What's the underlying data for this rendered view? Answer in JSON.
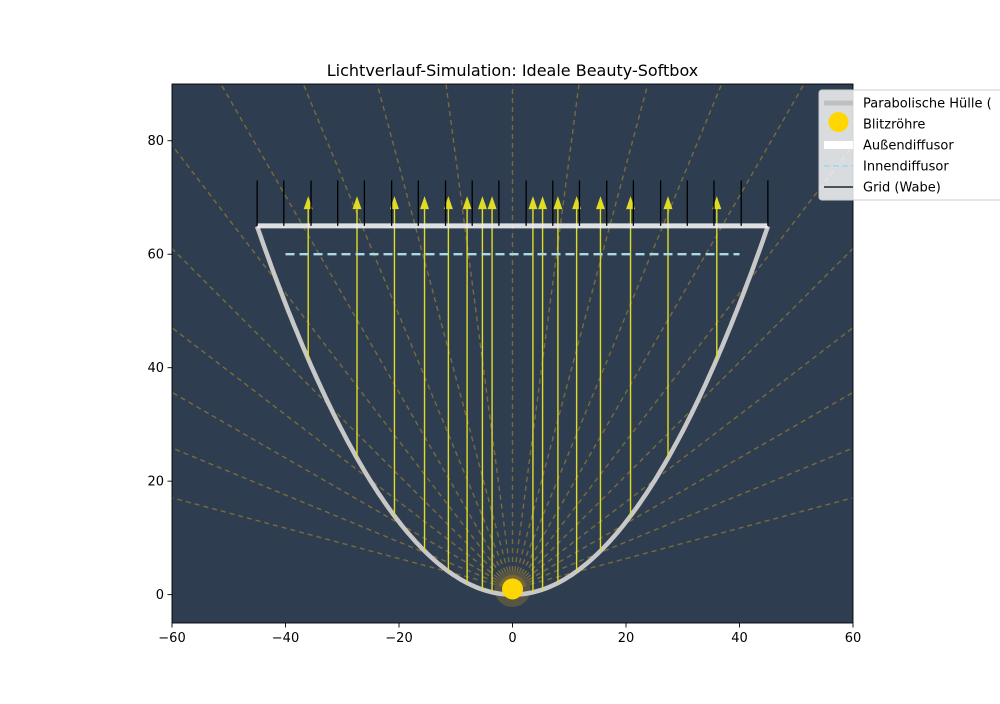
{
  "chart_data": {
    "type": "line",
    "title": "Lichtverlauf-Simulation: Ideale Beauty-Softbox",
    "xlabel": "",
    "ylabel": "",
    "xlim": [
      -60,
      60
    ],
    "ylim": [
      -5,
      90
    ],
    "x_ticks": [
      -60,
      -40,
      -20,
      0,
      20,
      40,
      60
    ],
    "x_tick_labels": [
      "−60",
      "−40",
      "−20",
      "0",
      "20",
      "40",
      "60"
    ],
    "y_ticks": [
      0,
      20,
      40,
      60,
      80
    ],
    "y_tick_labels": [
      "0",
      "20",
      "40",
      "60",
      "80"
    ],
    "grid": false,
    "legend_position": "upper-right",
    "colors": {
      "background": "#2e3e50",
      "reflector": "#c8c8c8",
      "flash": "#ffd700",
      "outer_diffuser": "#f2f2f2",
      "inner_diffuser": "#add8e6",
      "grid_cells": "#000000",
      "reflected_ray": "#e0dc23",
      "direct_ray": "#7a6a3a"
    },
    "legend": [
      {
        "label": "Parabolische Hülle (",
        "key": "reflector",
        "style": "thick-line",
        "color": "#c0c0c0"
      },
      {
        "label": "Blitzröhre",
        "key": "flash",
        "style": "dot",
        "color": "#ffd700"
      },
      {
        "label": "Außendiffusor",
        "key": "outer_diffuser",
        "style": "thick-line",
        "color": "#ffffff"
      },
      {
        "label": "Innendiffusor",
        "key": "inner_diffuser",
        "style": "dashed-line",
        "color": "#add8e6"
      },
      {
        "label": "Grid (Wabe)",
        "key": "grid_cells",
        "style": "line",
        "color": "#000000"
      }
    ],
    "series": [
      {
        "name": "Parabolische Hülle (",
        "equation": "y = x^2 / 31.2",
        "x_range": [
          -45,
          45
        ]
      },
      {
        "name": "Blitzröhre",
        "points": [
          [
            0,
            1
          ]
        ]
      },
      {
        "name": "Außendiffusor",
        "x": [
          -45,
          45
        ],
        "y": [
          65,
          65
        ]
      },
      {
        "name": "Innendiffusor",
        "x": [
          -40,
          40
        ],
        "y": [
          60,
          60
        ]
      },
      {
        "name": "Grid (Wabe)",
        "x": [
          -45,
          -40.3,
          -35.5,
          -30.8,
          -26.1,
          -21.3,
          -16.6,
          -11.8,
          -7.1,
          -2.4,
          2.4,
          7.1,
          11.8,
          16.6,
          21.3,
          26.1,
          30.8,
          35.5,
          40.3,
          45
        ],
        "y_range": [
          65,
          73
        ]
      }
    ],
    "reflected_ray_x": [
      -36,
      -27.4,
      -20.8,
      -15.5,
      -11.3,
      -8,
      -5.3,
      -3.6,
      3.6,
      5.3,
      8,
      11.3,
      15.5,
      20.8,
      27.4,
      36
    ],
    "reflected_ray_arrow_y": 69,
    "direct_ray_angles_deg": [
      -75,
      -67.5,
      -60,
      -52.5,
      -45,
      -37.5,
      -30,
      -22.5,
      -15,
      -7.5,
      0,
      7.5,
      15,
      22.5,
      30,
      37.5,
      45,
      52.5,
      60,
      67.5,
      75
    ]
  }
}
